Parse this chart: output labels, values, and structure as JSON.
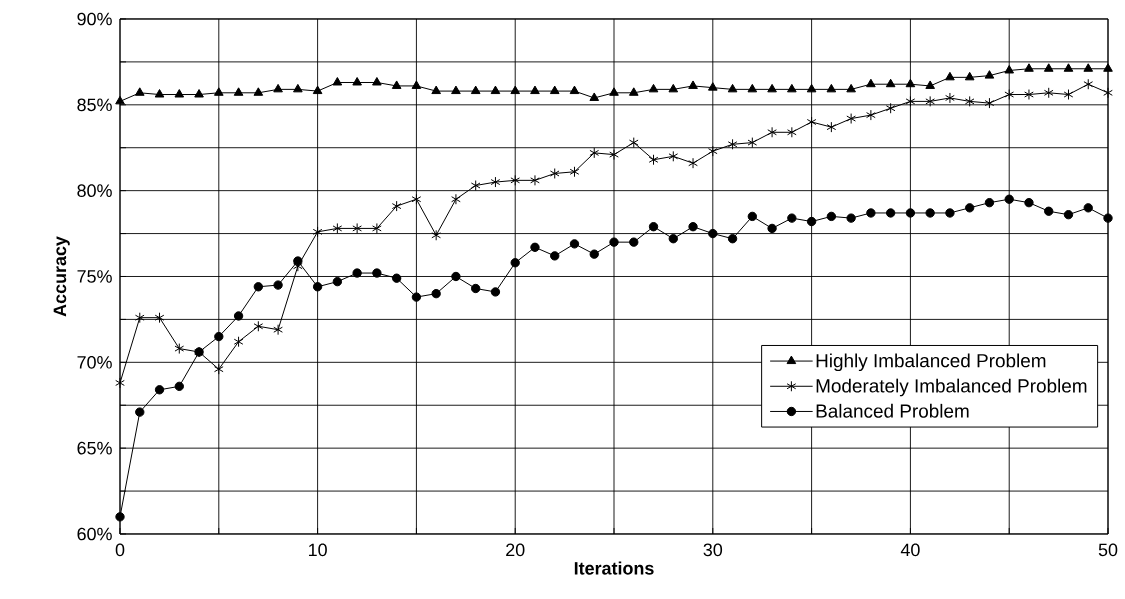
{
  "chart_data": {
    "type": "line",
    "xlabel": "Iterations",
    "ylabel": "Accuracy",
    "x": [
      0,
      1,
      2,
      3,
      4,
      5,
      6,
      7,
      8,
      9,
      10,
      11,
      12,
      13,
      14,
      15,
      16,
      17,
      18,
      19,
      20,
      21,
      22,
      23,
      24,
      25,
      26,
      27,
      28,
      29,
      30,
      31,
      32,
      33,
      34,
      35,
      36,
      37,
      38,
      39,
      40,
      41,
      42,
      43,
      44,
      45,
      46,
      47,
      48,
      49,
      50
    ],
    "xlim": [
      0,
      50
    ],
    "ylim": [
      60,
      90
    ],
    "xticks": [
      0,
      {
        "value": 5,
        "label": null
      },
      10,
      {
        "value": 15,
        "label": null
      },
      20,
      {
        "value": 25,
        "label": null
      },
      30,
      {
        "value": 35,
        "label": null
      },
      40,
      {
        "value": 45,
        "label": null
      },
      50
    ],
    "yticks": [
      {
        "value": 60,
        "label": "60%"
      },
      {
        "value": 62.5,
        "label": null
      },
      {
        "value": 65,
        "label": "65%"
      },
      {
        "value": 67.5,
        "label": null
      },
      {
        "value": 70,
        "label": "70%"
      },
      {
        "value": 72.5,
        "label": null
      },
      {
        "value": 75,
        "label": "75%"
      },
      {
        "value": 77.5,
        "label": null
      },
      {
        "value": 80,
        "label": "80%"
      },
      {
        "value": 82.5,
        "label": null
      },
      {
        "value": 85,
        "label": "85%"
      },
      {
        "value": 87.5,
        "label": null
      },
      {
        "value": 90,
        "label": "90%"
      }
    ],
    "grid": true,
    "legend": "bottom right",
    "line_style": "solid",
    "series": [
      {
        "name": "Highly Imbalanced Problem",
        "color": "#000000",
        "marker": "triangle",
        "values": [
          85.2,
          85.7,
          85.6,
          85.6,
          85.6,
          85.7,
          85.7,
          85.7,
          85.9,
          85.9,
          85.8,
          86.3,
          86.3,
          86.3,
          86.1,
          86.1,
          85.8,
          85.8,
          85.8,
          85.8,
          85.8,
          85.8,
          85.8,
          85.8,
          85.4,
          85.7,
          85.7,
          85.9,
          85.9,
          86.1,
          86.0,
          85.9,
          85.9,
          85.9,
          85.9,
          85.9,
          85.9,
          85.9,
          86.2,
          86.2,
          86.2,
          86.1,
          86.6,
          86.6,
          86.7,
          87.0,
          87.1,
          87.1,
          87.1,
          87.1,
          87.1
        ]
      },
      {
        "name": "Moderately Imbalanced Problem",
        "color": "#000000",
        "marker": "cross",
        "values": [
          68.8,
          72.6,
          72.6,
          70.8,
          70.6,
          69.6,
          71.2,
          72.1,
          71.9,
          75.6,
          77.6,
          77.8,
          77.8,
          77.8,
          79.1,
          79.5,
          77.4,
          79.5,
          80.3,
          80.5,
          80.6,
          80.6,
          81.0,
          81.1,
          82.2,
          82.1,
          82.8,
          81.8,
          82.0,
          81.6,
          82.3,
          82.7,
          82.8,
          83.4,
          83.4,
          84.0,
          83.7,
          84.2,
          84.4,
          84.8,
          85.2,
          85.2,
          85.4,
          85.2,
          85.1,
          85.6,
          85.6,
          85.7,
          85.6,
          86.2,
          85.7
        ]
      },
      {
        "name": "Balanced Problem",
        "color": "#000000",
        "marker": "circle",
        "values": [
          61.0,
          67.1,
          68.4,
          68.6,
          70.6,
          71.5,
          72.7,
          74.4,
          74.5,
          75.9,
          74.4,
          74.7,
          75.2,
          75.2,
          74.9,
          73.8,
          74.0,
          75.0,
          74.3,
          74.1,
          75.8,
          76.7,
          76.2,
          76.9,
          76.3,
          77.0,
          77.0,
          77.9,
          77.2,
          77.9,
          77.5,
          77.2,
          78.5,
          77.8,
          78.4,
          78.2,
          78.5,
          78.4,
          78.7,
          78.7,
          78.7,
          78.7,
          78.7,
          79.0,
          79.3,
          79.5,
          79.3,
          78.8,
          78.6,
          79.0,
          78.4
        ]
      }
    ]
  }
}
